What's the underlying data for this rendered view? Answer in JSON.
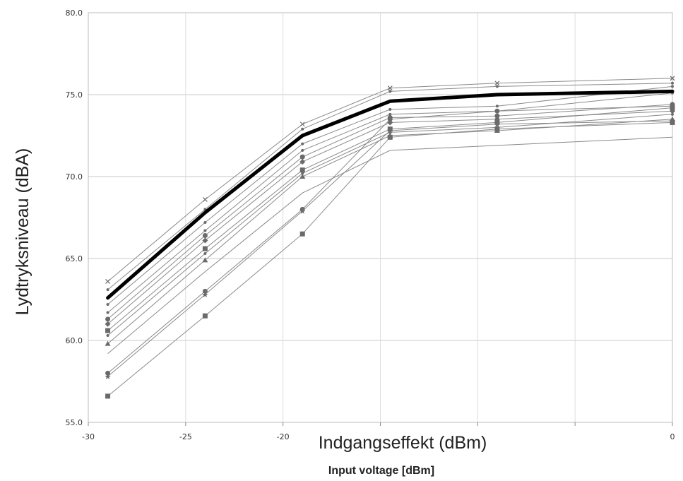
{
  "chart_data": {
    "type": "line",
    "xlabel": "Input voltage [dBm]",
    "xlabel_overlay": "Indgangseffekt (dBm)",
    "ylabel": "Lydtryksniveau  (dBA)",
    "xlim": [
      -30,
      0
    ],
    "ylim": [
      55,
      80
    ],
    "x_ticks": [
      "-30",
      "-25",
      "-20",
      "",
      "",
      "",
      "0"
    ],
    "y_ticks": [
      "55.0",
      "60.0",
      "65.0",
      "70.0",
      "75.0",
      "80.0"
    ],
    "grid": true,
    "x": [
      -29,
      -24,
      -19,
      -14.5,
      -9,
      0
    ],
    "highlight_series": {
      "values": [
        62.6,
        67.8,
        72.5,
        74.6,
        75.0,
        75.2
      ],
      "color": "#000000"
    },
    "series": [
      {
        "values": [
          63.6,
          68.6,
          73.2,
          75.4,
          75.7,
          76.0
        ],
        "marker": "x"
      },
      {
        "values": [
          63.1,
          68.0,
          72.9,
          75.2,
          75.5,
          75.7
        ],
        "marker": "dot"
      },
      {
        "values": [
          62.2,
          67.2,
          72.0,
          74.1,
          74.3,
          75.5
        ],
        "marker": "dot"
      },
      {
        "values": [
          61.7,
          66.7,
          71.6,
          73.8,
          74.0,
          75.1
        ],
        "marker": "dot"
      },
      {
        "values": [
          61.3,
          66.4,
          71.2,
          73.6,
          73.7,
          74.4
        ],
        "marker": "circle"
      },
      {
        "values": [
          61.0,
          66.1,
          70.9,
          73.3,
          73.5,
          74.0
        ],
        "marker": "diamond"
      },
      {
        "values": [
          60.6,
          65.6,
          70.4,
          72.9,
          73.3,
          74.2
        ],
        "marker": "square"
      },
      {
        "values": [
          60.3,
          65.3,
          70.2,
          72.7,
          73.0,
          73.8
        ],
        "marker": "dot"
      },
      {
        "values": [
          59.8,
          64.9,
          70.0,
          72.5,
          72.8,
          73.5
        ],
        "marker": "triangle"
      },
      {
        "values": [
          58.0,
          63.0,
          68.0,
          73.5,
          74.0,
          74.3
        ],
        "marker": "circle"
      },
      {
        "values": [
          57.8,
          62.8,
          67.9,
          72.8,
          73.2,
          73.4
        ],
        "marker": "star"
      },
      {
        "values": [
          56.6,
          61.5,
          66.5,
          72.4,
          72.9,
          73.3
        ],
        "marker": "square"
      },
      {
        "values": [
          59.2,
          64.2,
          69.0,
          71.6,
          71.9,
          72.4
        ],
        "marker": "none"
      }
    ]
  }
}
